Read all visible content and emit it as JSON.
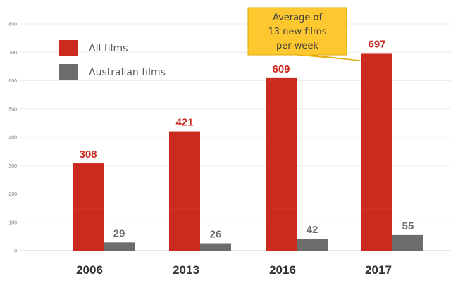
{
  "chart_data": {
    "type": "bar",
    "categories": [
      "2006",
      "2013",
      "2016",
      "2017"
    ],
    "series": [
      {
        "name": "All films",
        "color": "#cc2a1f",
        "label_color": "#cc2a1f",
        "values": [
          308,
          421,
          609,
          697
        ]
      },
      {
        "name": "Australian films",
        "color": "#6d6d6d",
        "label_color": "#6d6d6d",
        "values": [
          29,
          26,
          42,
          55
        ]
      }
    ],
    "ylim": [
      0,
      800
    ],
    "yticks": [
      0,
      100,
      200,
      300,
      400,
      500,
      600,
      700,
      800
    ],
    "grid": true,
    "legend_position": "top-left",
    "annotation": {
      "lines": [
        "Average of",
        "13 new films",
        "per week"
      ],
      "fill": "#fcc72f",
      "target": "2017"
    },
    "title": "",
    "xlabel": "",
    "ylabel": ""
  }
}
